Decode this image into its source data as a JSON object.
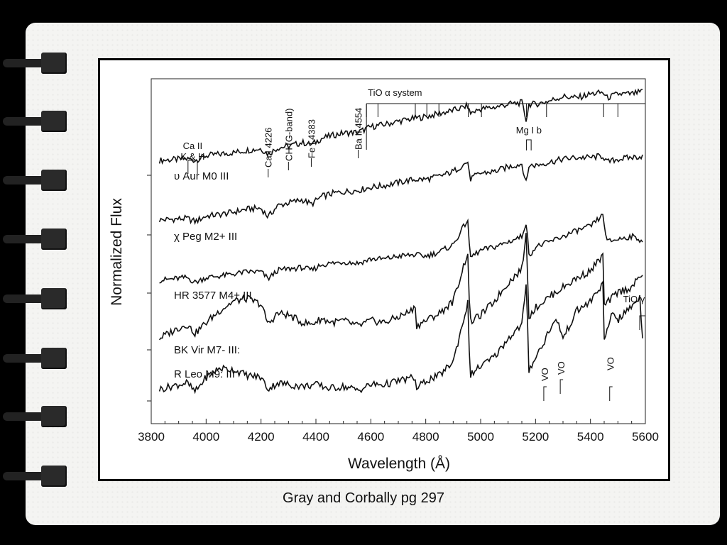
{
  "caption": "Gray and Corbally pg 297",
  "chart_data": {
    "type": "line",
    "xlabel": "Wavelength (Å)",
    "ylabel": "Normalized Flux",
    "xlim": [
      3800,
      5600
    ],
    "x_ticks": [
      "3800",
      "4000",
      "4200",
      "4400",
      "4600",
      "4800",
      "5000",
      "5200",
      "5400",
      "5600"
    ],
    "series": [
      {
        "name": "υ Aur  M0 III",
        "x": [
          3830,
          3930,
          3960,
          4000,
          4050,
          4100,
          4150,
          4200,
          4226,
          4260,
          4300,
          4350,
          4383,
          4420,
          4460,
          4500,
          4554,
          4600,
          4650,
          4700,
          4760,
          4800,
          4850,
          4900,
          4955,
          4960,
          5000,
          5050,
          5100,
          5150,
          5167,
          5175,
          5200,
          5250,
          5300,
          5350,
          5400,
          5446,
          5460,
          5500,
          5550,
          5590
        ],
        "y": [
          0.1,
          0.12,
          0.1,
          0.16,
          0.18,
          0.2,
          0.23,
          0.25,
          0.18,
          0.26,
          0.28,
          0.33,
          0.3,
          0.38,
          0.42,
          0.45,
          0.46,
          0.53,
          0.56,
          0.6,
          0.64,
          0.66,
          0.7,
          0.74,
          0.8,
          0.7,
          0.76,
          0.78,
          0.82,
          0.84,
          0.6,
          0.82,
          0.82,
          0.86,
          0.92,
          0.9,
          0.95,
          0.97,
          0.9,
          0.95,
          0.95,
          0.98
        ]
      },
      {
        "name": "χ Peg  M2+ III",
        "x": [
          3830,
          3930,
          3960,
          4000,
          4050,
          4100,
          4150,
          4200,
          4226,
          4260,
          4300,
          4350,
          4383,
          4420,
          4460,
          4500,
          4554,
          4600,
          4650,
          4700,
          4760,
          4800,
          4850,
          4900,
          4955,
          4960,
          5000,
          5050,
          5100,
          5150,
          5167,
          5175,
          5200,
          5250,
          5300,
          5350,
          5400,
          5446,
          5460,
          5500,
          5550,
          5590
        ],
        "y": [
          0.1,
          0.12,
          0.08,
          0.15,
          0.17,
          0.2,
          0.24,
          0.25,
          0.14,
          0.28,
          0.32,
          0.36,
          0.3,
          0.4,
          0.44,
          0.46,
          0.48,
          0.52,
          0.54,
          0.58,
          0.62,
          0.62,
          0.66,
          0.72,
          0.85,
          0.62,
          0.7,
          0.72,
          0.78,
          0.82,
          0.55,
          0.8,
          0.8,
          0.84,
          0.88,
          0.9,
          0.9,
          0.92,
          0.84,
          0.88,
          0.9,
          0.92
        ]
      },
      {
        "name": "HR 3577  M4+ III",
        "x": [
          3830,
          3930,
          3960,
          4000,
          4050,
          4100,
          4150,
          4200,
          4226,
          4260,
          4300,
          4350,
          4383,
          4420,
          4460,
          4500,
          4554,
          4600,
          4650,
          4700,
          4760,
          4800,
          4850,
          4900,
          4955,
          4960,
          5000,
          5050,
          5100,
          5150,
          5167,
          5175,
          5200,
          5250,
          5300,
          5350,
          5400,
          5446,
          5460,
          5500,
          5550,
          5590
        ],
        "y": [
          0.08,
          0.12,
          0.05,
          0.12,
          0.14,
          0.17,
          0.2,
          0.2,
          0.1,
          0.22,
          0.24,
          0.26,
          0.22,
          0.3,
          0.32,
          0.34,
          0.32,
          0.38,
          0.38,
          0.42,
          0.44,
          0.42,
          0.48,
          0.58,
          0.95,
          0.4,
          0.5,
          0.55,
          0.62,
          0.7,
          0.92,
          0.42,
          0.55,
          0.62,
          0.7,
          0.78,
          0.84,
          1.0,
          0.62,
          0.66,
          0.7,
          0.64
        ]
      },
      {
        "name": "BK Vir  M7- III:",
        "x": [
          3830,
          3900,
          3930,
          3960,
          4000,
          4050,
          4100,
          4150,
          4180,
          4200,
          4226,
          4260,
          4300,
          4350,
          4383,
          4420,
          4460,
          4500,
          4554,
          4600,
          4650,
          4700,
          4750,
          4760,
          4765,
          4800,
          4850,
          4900,
          4950,
          4955,
          4960,
          5000,
          5050,
          5100,
          5150,
          5167,
          5175,
          5200,
          5250,
          5300,
          5350,
          5400,
          5446,
          5450,
          5500,
          5550,
          5590
        ],
        "y": [
          0.05,
          0.16,
          0.2,
          0.1,
          0.22,
          0.35,
          0.45,
          0.48,
          0.44,
          0.42,
          0.2,
          0.32,
          0.3,
          0.22,
          0.2,
          0.26,
          0.22,
          0.24,
          0.18,
          0.24,
          0.22,
          0.28,
          0.35,
          0.45,
          0.18,
          0.24,
          0.32,
          0.45,
          0.95,
          1.0,
          0.22,
          0.3,
          0.45,
          0.65,
          0.8,
          1.2,
          0.28,
          0.38,
          0.5,
          0.6,
          0.7,
          0.78,
          0.95,
          0.4,
          0.55,
          0.6,
          0.75
        ]
      },
      {
        "name": "R Leo  M9: III",
        "x": [
          3830,
          3900,
          3930,
          3960,
          4000,
          4050,
          4100,
          4150,
          4200,
          4226,
          4260,
          4300,
          4350,
          4400,
          4450,
          4500,
          4554,
          4600,
          4650,
          4700,
          4760,
          4765,
          4800,
          4850,
          4900,
          4950,
          4955,
          4960,
          5000,
          5050,
          5100,
          5150,
          5167,
          5175,
          5200,
          5230,
          5250,
          5280,
          5300,
          5350,
          5400,
          5446,
          5450,
          5480,
          5500,
          5550,
          5580,
          5590
        ],
        "y": [
          0.05,
          0.1,
          0.12,
          0.02,
          0.18,
          0.28,
          0.26,
          0.2,
          0.18,
          0.05,
          0.12,
          0.1,
          0.08,
          0.1,
          0.06,
          0.08,
          0.04,
          0.1,
          0.1,
          0.14,
          0.18,
          0.05,
          0.14,
          0.2,
          0.35,
          0.95,
          1.0,
          0.2,
          0.3,
          0.4,
          0.6,
          0.75,
          1.2,
          0.25,
          0.4,
          0.55,
          0.7,
          0.8,
          0.6,
          0.9,
          1.0,
          1.2,
          0.55,
          0.9,
          0.8,
          0.95,
          1.05,
          0.6
        ]
      }
    ],
    "annotations": [
      {
        "label": "Ca II K & H",
        "x": [
          3934,
          3968
        ]
      },
      {
        "label": "Ca I 4226",
        "x": 4226
      },
      {
        "label": "CH (G-band)",
        "x": 4300
      },
      {
        "label": "Fe I 4383",
        "x": 4383
      },
      {
        "label": "Ba II 4554",
        "x": 4554
      },
      {
        "label": "Mg I b",
        "x": [
          5167,
          5184
        ]
      },
      {
        "label": "TiO α system",
        "x": [
          4584,
          4626,
          4762,
          4804,
          4848,
          4955,
          5003,
          5167,
          5240,
          5448,
          5500,
          5600
        ]
      },
      {
        "label": "TiO γ",
        "x": [
          5600,
          5630
        ]
      },
      {
        "label": "VO",
        "x": 5230
      },
      {
        "label": "VO",
        "x": 5290
      },
      {
        "label": "VO",
        "x": 5470
      }
    ]
  }
}
